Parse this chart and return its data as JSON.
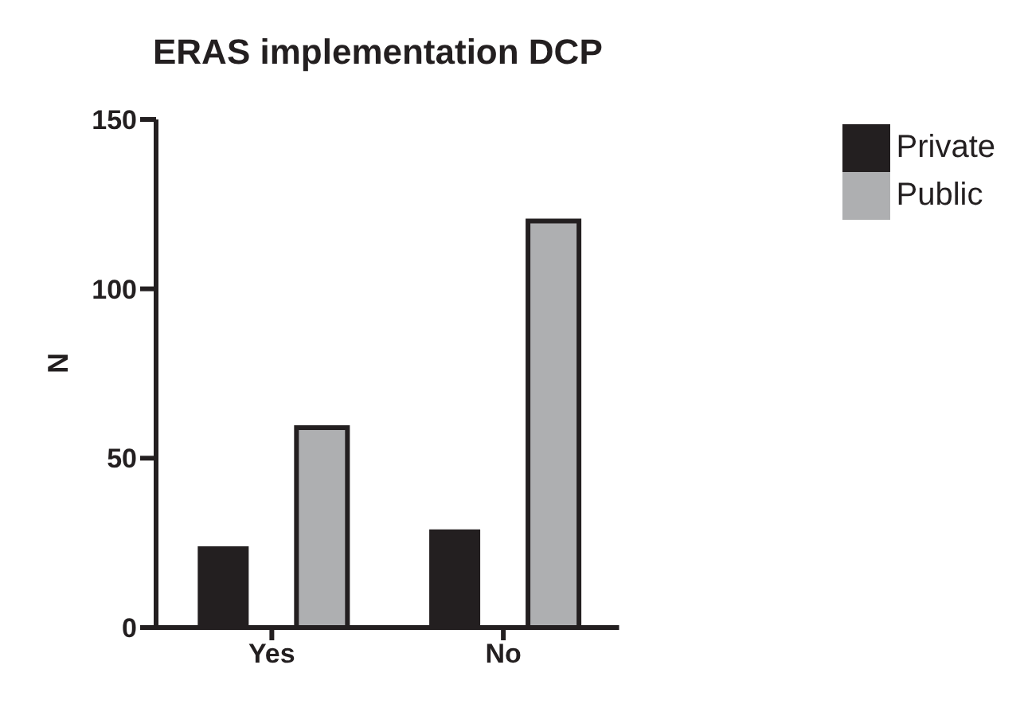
{
  "chart_data": {
    "type": "bar",
    "title": "ERAS implementation DCP",
    "ylabel": "N",
    "categories": [
      "Yes",
      "No"
    ],
    "series": [
      {
        "name": "Private",
        "color": "#231f20",
        "values": [
          24,
          29
        ]
      },
      {
        "name": "Public",
        "color": "#aeafb1",
        "values": [
          59,
          120
        ]
      }
    ],
    "ylim": [
      0,
      150
    ],
    "yticks": [
      0,
      50,
      100,
      150
    ],
    "grid": false,
    "legend": "top right"
  }
}
